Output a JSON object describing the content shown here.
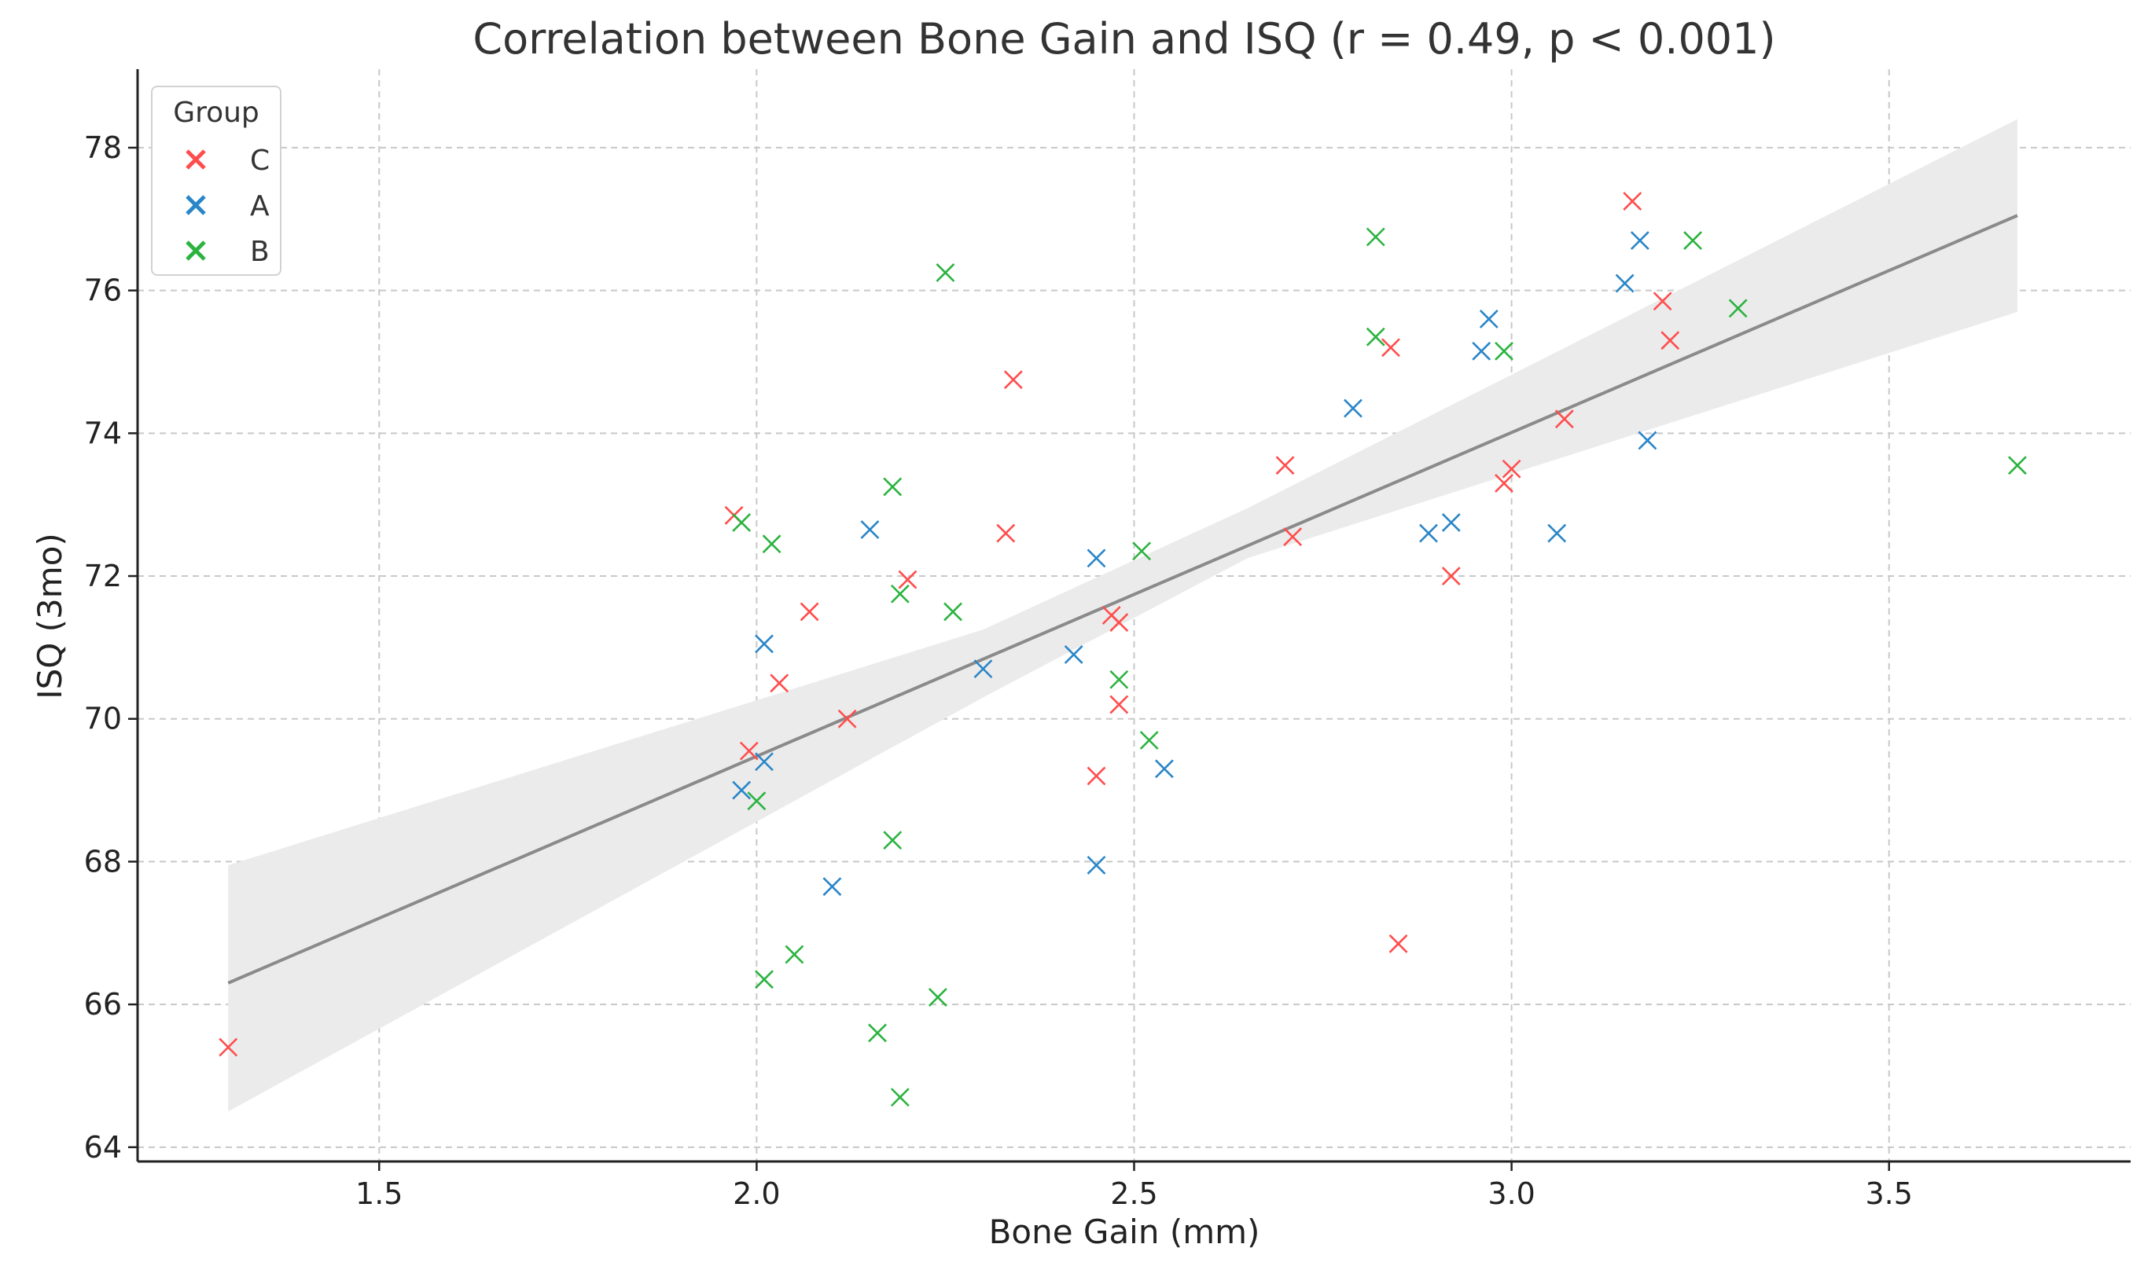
{
  "chart_data": {
    "type": "scatter",
    "title": "Correlation between Bone Gain and ISQ (r = 0.49, p < 0.001)",
    "xlabel": "Bone Gain (mm)",
    "ylabel": "ISQ (3mo)",
    "xlim": [
      1.18,
      3.82
    ],
    "ylim": [
      63.8,
      79.1
    ],
    "xticks": [
      1.5,
      2.0,
      2.5,
      3.0,
      3.5
    ],
    "xtick_labels": [
      "1.5",
      "2.0",
      "2.5",
      "3.0",
      "3.5"
    ],
    "yticks": [
      64,
      66,
      68,
      70,
      72,
      74,
      76,
      78
    ],
    "ytick_labels": [
      "64",
      "66",
      "68",
      "70",
      "72",
      "74",
      "76",
      "78"
    ],
    "grid": true,
    "legend": {
      "title": "Group",
      "position": "top-left",
      "entries": [
        "C",
        "A",
        "B"
      ]
    },
    "colors": {
      "C": "#ff4d4d",
      "A": "#2a86c8",
      "B": "#2bb33f",
      "line": "#8a8a8a",
      "band": "#ebebeb",
      "grid": "#c8c8c8",
      "axis": "#222222"
    },
    "regression": {
      "x_start": 1.3,
      "x_end": 3.67,
      "y_start": 66.3,
      "y_end": 77.05,
      "ci_low_start": 64.5,
      "ci_high_start": 67.95,
      "ci_low_end": 75.7,
      "ci_high_end": 78.4
    },
    "series": [
      {
        "name": "C",
        "marker": "x",
        "points": [
          [
            1.3,
            65.4
          ],
          [
            1.97,
            72.85
          ],
          [
            1.99,
            69.55
          ],
          [
            2.03,
            70.5
          ],
          [
            2.07,
            71.5
          ],
          [
            2.12,
            70.0
          ],
          [
            2.2,
            71.95
          ],
          [
            2.33,
            72.6
          ],
          [
            2.34,
            74.75
          ],
          [
            2.45,
            69.2
          ],
          [
            2.47,
            71.45
          ],
          [
            2.48,
            70.2
          ],
          [
            2.48,
            71.35
          ],
          [
            2.7,
            73.55
          ],
          [
            2.71,
            72.55
          ],
          [
            2.84,
            75.2
          ],
          [
            2.85,
            66.85
          ],
          [
            2.92,
            72.0
          ],
          [
            2.99,
            73.3
          ],
          [
            3.0,
            73.5
          ],
          [
            3.07,
            74.2
          ],
          [
            3.16,
            77.25
          ],
          [
            3.2,
            75.85
          ],
          [
            3.21,
            75.3
          ]
        ]
      },
      {
        "name": "A",
        "marker": "x",
        "points": [
          [
            1.98,
            69.0
          ],
          [
            2.01,
            71.05
          ],
          [
            2.01,
            69.4
          ],
          [
            2.1,
            67.65
          ],
          [
            2.15,
            72.65
          ],
          [
            2.3,
            70.7
          ],
          [
            2.42,
            70.9
          ],
          [
            2.45,
            67.95
          ],
          [
            2.45,
            72.25
          ],
          [
            2.54,
            69.3
          ],
          [
            2.79,
            74.35
          ],
          [
            2.89,
            72.6
          ],
          [
            2.92,
            72.75
          ],
          [
            2.96,
            75.15
          ],
          [
            2.97,
            75.6
          ],
          [
            3.06,
            72.6
          ],
          [
            3.15,
            76.1
          ],
          [
            3.17,
            76.7
          ],
          [
            3.18,
            73.9
          ]
        ]
      },
      {
        "name": "B",
        "marker": "x",
        "points": [
          [
            1.98,
            72.75
          ],
          [
            2.0,
            68.85
          ],
          [
            2.01,
            66.35
          ],
          [
            2.02,
            72.45
          ],
          [
            2.05,
            66.7
          ],
          [
            2.16,
            65.6
          ],
          [
            2.18,
            68.3
          ],
          [
            2.18,
            73.25
          ],
          [
            2.19,
            71.75
          ],
          [
            2.19,
            64.7
          ],
          [
            2.24,
            66.1
          ],
          [
            2.25,
            76.25
          ],
          [
            2.26,
            71.5
          ],
          [
            2.48,
            70.55
          ],
          [
            2.51,
            72.35
          ],
          [
            2.52,
            69.7
          ],
          [
            2.82,
            75.35
          ],
          [
            2.82,
            76.75
          ],
          [
            2.99,
            75.15
          ],
          [
            3.24,
            76.7
          ],
          [
            3.3,
            75.75
          ],
          [
            3.67,
            73.55
          ]
        ]
      }
    ]
  }
}
